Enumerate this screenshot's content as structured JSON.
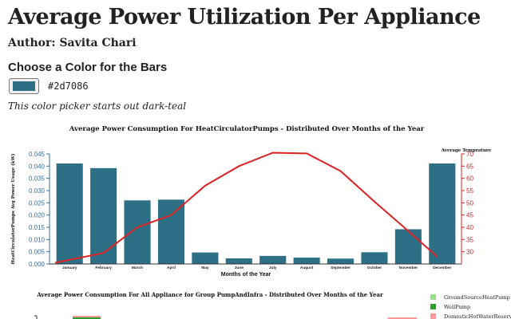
{
  "page": {
    "title": "Average Power Utilization Per Appliance",
    "author": "Author: Savita Chari",
    "picker_heading": "Choose a Color for the Bars",
    "hex_value": "#2d7086",
    "picker_note": "This color picker starts out dark-teal"
  },
  "colors": {
    "bar": "#2d7086",
    "temp_line": "#dd2222",
    "left_axis": "#3a6fa0",
    "right_axis": "#dd2222"
  },
  "chart_data": [
    {
      "type": "bar",
      "title": "Average Power Consumption For HeatCirculatorPumps - Distributed Over Months of the Year",
      "xlabel": "Months of the Year",
      "ylabel": "HeatCirculatorPumps Avg Power Usage (kW)",
      "y2label": "Average Temprature",
      "categories": [
        "January",
        "February",
        "March",
        "April",
        "May",
        "June",
        "July",
        "August",
        "September",
        "October",
        "November",
        "December"
      ],
      "values": [
        0.0411,
        0.0392,
        0.026,
        0.0263,
        0.0047,
        0.0023,
        0.0033,
        0.0026,
        0.0022,
        0.0048,
        0.0142,
        0.0411
      ],
      "ylim": [
        0,
        0.045
      ],
      "yticks": [
        "0.000",
        "0.005",
        "0.010",
        "0.015",
        "0.020",
        "0.025",
        "0.030",
        "0.035",
        "0.040",
        "0.045"
      ],
      "y2lim": [
        25,
        70
      ],
      "y2ticks": [
        "30",
        "35",
        "40",
        "45",
        "50",
        "55",
        "60",
        "65",
        "70"
      ],
      "temperature": [
        25.5,
        29.5,
        40,
        45,
        57,
        65,
        70.5,
        70.2,
        63,
        50.5,
        38.5,
        28
      ]
    },
    {
      "type": "bar",
      "title": "Average Power Consumption For All Appliance for Group PumpAndInfra - Distributed Over Months of the Year",
      "legend": [
        {
          "name": "GroundSourceHeatPump",
          "color": "#98df8a"
        },
        {
          "name": "WellPump",
          "color": "#2ca02c"
        },
        {
          "name": "DomesticHotWaterReservoir",
          "color": "#ff9896"
        }
      ]
    }
  ]
}
